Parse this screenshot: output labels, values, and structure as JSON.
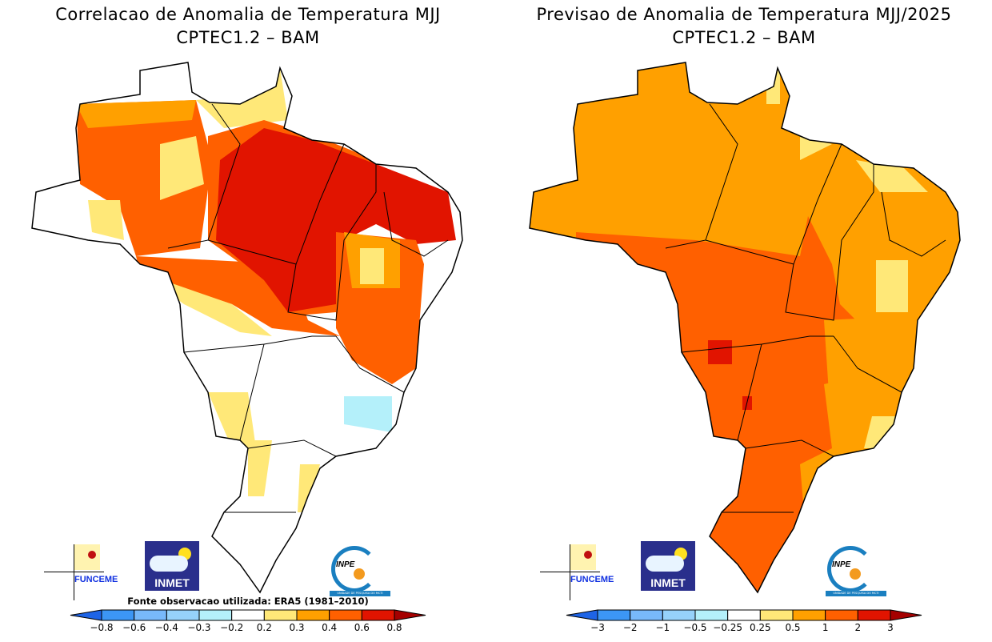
{
  "panels": [
    {
      "title_line1": "Correlacao de Anomalia de Temperatura MJJ",
      "title_line2": "CPTEC1.2 – BAM",
      "source_note": "Fonte observacao utilizada: ERA5 (1981–2010)",
      "colorbar_labels": [
        "−0.8",
        "−0.6",
        "−0.4",
        "−0.3",
        "−0.2",
        "0.2",
        "0.3",
        "0.4",
        "0.6",
        "0.8"
      ]
    },
    {
      "title_line1": "Previsao de Anomalia de Temperatura MJJ/2025",
      "title_line2": "CPTEC1.2 – BAM",
      "colorbar_labels": [
        "−3",
        "−2",
        "−1",
        "−0.5",
        "−0.25",
        "0.25",
        "0.5",
        "1",
        "2",
        "3"
      ]
    }
  ],
  "colorbar_colors": [
    "#1e64e6",
    "#3c96f5",
    "#78b9fa",
    "#96d2fa",
    "#b4f0fa",
    "#ffffff",
    "#ffe878",
    "#ffa000",
    "#ff6000",
    "#e11400",
    "#a50000"
  ],
  "logos": {
    "funceme": "FUNCEME",
    "inmet": "INMET",
    "inpe": "INPE",
    "inpe_band": "UNIDADE DE PESQUISA DO MCTI"
  }
}
